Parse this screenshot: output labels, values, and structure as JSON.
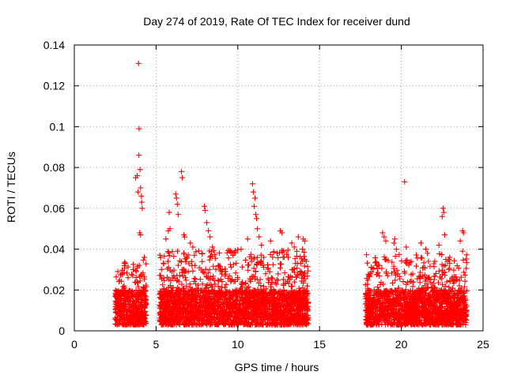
{
  "chart_data": {
    "type": "scatter",
    "title": "Day 274 of 2019, Rate Of TEC Index for receiver dund",
    "xlabel": "GPS time / hours",
    "ylabel": "ROTI / TECUs",
    "xlim": [
      0,
      25
    ],
    "ylim": [
      0,
      0.14
    ],
    "x_ticks": [
      0,
      5,
      10,
      15,
      20,
      25
    ],
    "x_tick_labels": [
      "0",
      "5",
      "10",
      "15",
      "20",
      "25"
    ],
    "y_ticks": [
      0,
      0.02,
      0.04,
      0.06,
      0.08,
      0.1,
      0.12,
      0.14
    ],
    "y_tick_labels": [
      "0",
      "0.02",
      "0.04",
      "0.06",
      "0.08",
      "0.1",
      "0.12",
      "0.14"
    ],
    "grid": true,
    "marker": "+",
    "color": "#ff0000",
    "series": [
      {
        "name": "ROTI",
        "points": [
          [
            3.93,
            0.131
          ],
          [
            3.96,
            0.099
          ],
          [
            3.95,
            0.086
          ],
          [
            4.02,
            0.079
          ],
          [
            3.75,
            0.075
          ],
          [
            3.85,
            0.076
          ],
          [
            4.05,
            0.07
          ],
          [
            3.9,
            0.068
          ],
          [
            4.1,
            0.066
          ],
          [
            4.12,
            0.063
          ],
          [
            4.15,
            0.06
          ],
          [
            4.0,
            0.048
          ],
          [
            4.05,
            0.047
          ],
          [
            4.28,
            0.036
          ],
          [
            3.6,
            0.03
          ],
          [
            6.55,
            0.078
          ],
          [
            6.6,
            0.075
          ],
          [
            6.2,
            0.067
          ],
          [
            6.25,
            0.065
          ],
          [
            6.3,
            0.062
          ],
          [
            5.8,
            0.058
          ],
          [
            6.35,
            0.057
          ],
          [
            5.85,
            0.05
          ],
          [
            6.7,
            0.047
          ],
          [
            6.75,
            0.046
          ],
          [
            5.75,
            0.049
          ],
          [
            5.6,
            0.045
          ],
          [
            7.1,
            0.043
          ],
          [
            7.25,
            0.041
          ],
          [
            7.95,
            0.061
          ],
          [
            8.0,
            0.059
          ],
          [
            8.1,
            0.053
          ],
          [
            8.2,
            0.049
          ],
          [
            8.3,
            0.046
          ],
          [
            8.45,
            0.041
          ],
          [
            10.9,
            0.072
          ],
          [
            10.95,
            0.068
          ],
          [
            11.05,
            0.065
          ],
          [
            11.0,
            0.061
          ],
          [
            11.1,
            0.057
          ],
          [
            11.15,
            0.055
          ],
          [
            11.2,
            0.05
          ],
          [
            11.3,
            0.046
          ],
          [
            11.45,
            0.042
          ],
          [
            10.6,
            0.045
          ],
          [
            10.2,
            0.04
          ],
          [
            9.5,
            0.039
          ],
          [
            9.7,
            0.037
          ],
          [
            12.0,
            0.044
          ],
          [
            12.6,
            0.049
          ],
          [
            12.7,
            0.048
          ],
          [
            13.3,
            0.043
          ],
          [
            13.45,
            0.041
          ],
          [
            13.7,
            0.046
          ],
          [
            14.0,
            0.045
          ],
          [
            14.1,
            0.044
          ],
          [
            13.95,
            0.04
          ],
          [
            12.4,
            0.038
          ],
          [
            18.85,
            0.048
          ],
          [
            18.95,
            0.046
          ],
          [
            19.05,
            0.044
          ],
          [
            19.6,
            0.045
          ],
          [
            19.55,
            0.043
          ],
          [
            19.7,
            0.04
          ],
          [
            20.2,
            0.073
          ],
          [
            20.3,
            0.041
          ],
          [
            20.6,
            0.034
          ],
          [
            21.2,
            0.043
          ],
          [
            21.6,
            0.038
          ],
          [
            21.5,
            0.04
          ],
          [
            22.3,
            0.042
          ],
          [
            22.55,
            0.06
          ],
          [
            22.6,
            0.058
          ],
          [
            22.5,
            0.056
          ],
          [
            22.65,
            0.047
          ],
          [
            23.75,
            0.049
          ],
          [
            23.8,
            0.048
          ],
          [
            23.6,
            0.044
          ],
          [
            23.75,
            0.039
          ],
          [
            22.9,
            0.035
          ],
          [
            18.1,
            0.028
          ],
          [
            18.5,
            0.032
          ]
        ],
        "dense_clusters": [
          {
            "x_range": [
              2.5,
              4.4
            ],
            "y_range": [
              0.003,
              0.035
            ]
          },
          {
            "x_range": [
              5.2,
              14.3
            ],
            "y_range": [
              0.003,
              0.04
            ]
          },
          {
            "x_range": [
              17.8,
              24.0
            ],
            "y_range": [
              0.003,
              0.038
            ]
          }
        ]
      }
    ]
  }
}
